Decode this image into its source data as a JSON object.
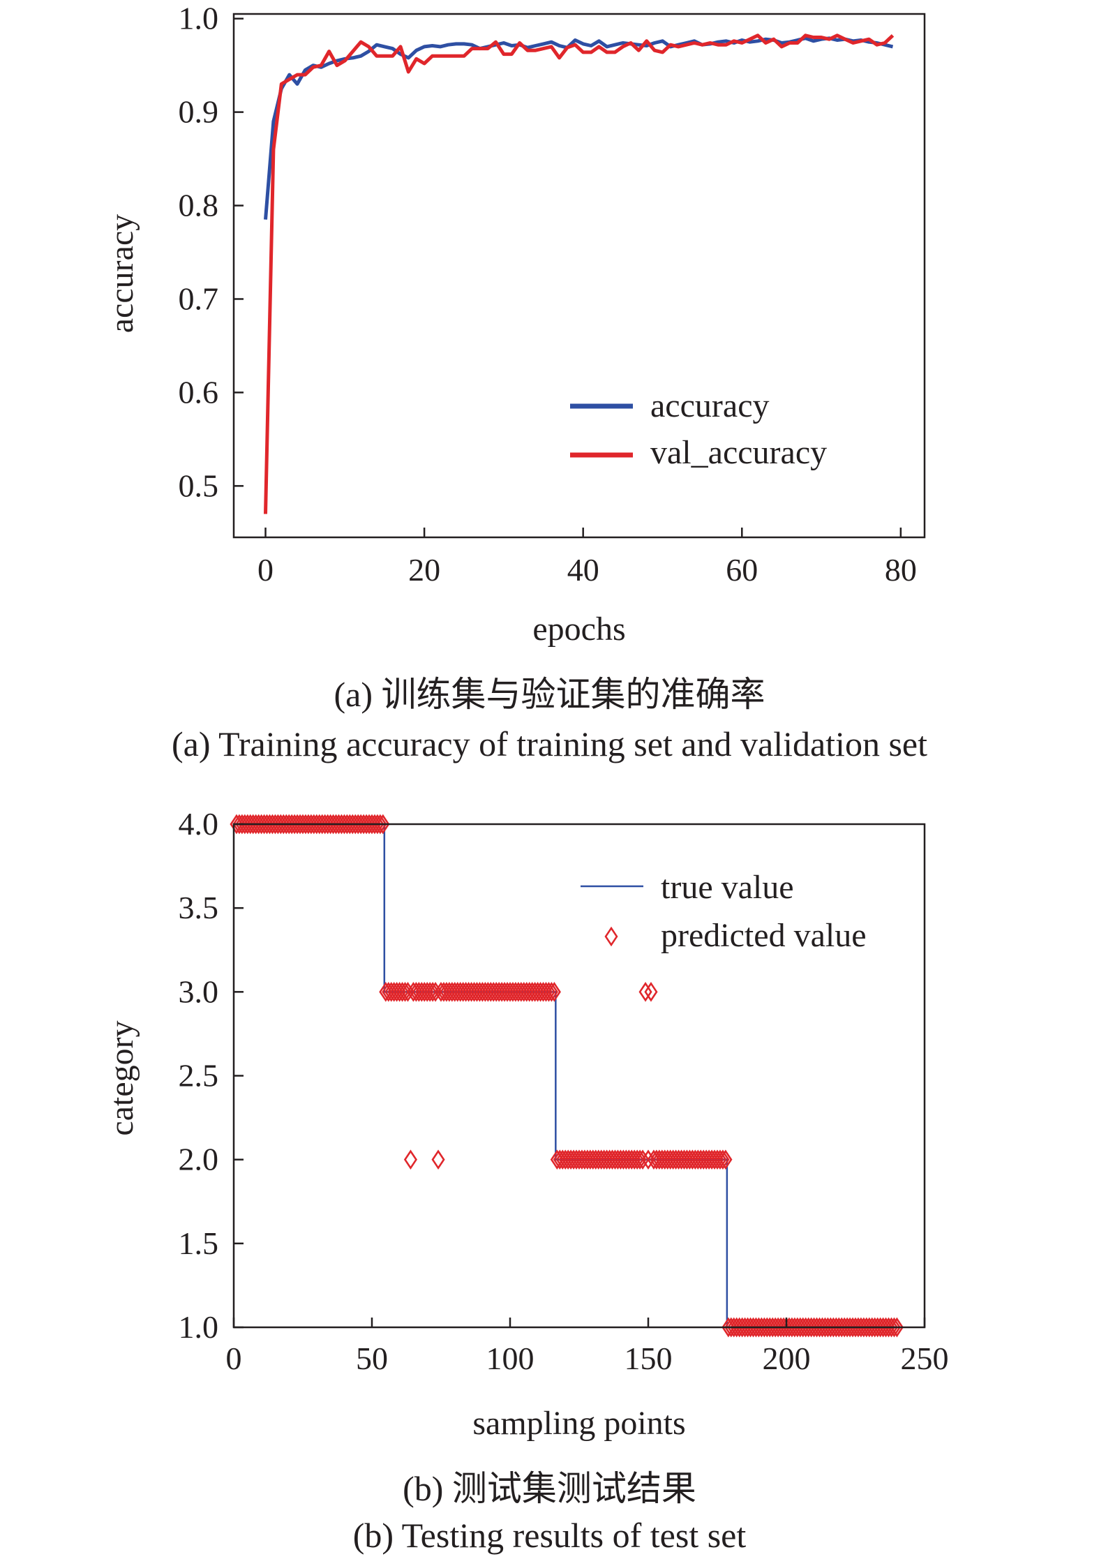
{
  "chart_data": [
    {
      "type": "line",
      "xlabel": "epochs",
      "ylabel": "accuracy",
      "xlim": [
        -4,
        83
      ],
      "ylim": [
        0.445,
        1.005
      ],
      "xticks": [
        0,
        20,
        40,
        60,
        80
      ],
      "yticks": [
        0.5,
        0.6,
        0.7,
        0.8,
        0.9,
        1.0
      ],
      "legend_position": "lower-right",
      "grid": false,
      "caption_cn": "(a) 训练集与验证集的准确率",
      "caption_en": "(a) Training accuracy of training set and validation set",
      "series": [
        {
          "name": "accuracy",
          "color": "#2e4fa3",
          "x": [
            0,
            1,
            2,
            3,
            4,
            5,
            6,
            7,
            8,
            9,
            10,
            11,
            12,
            13,
            14,
            15,
            16,
            17,
            18,
            19,
            20,
            21,
            22,
            23,
            24,
            25,
            26,
            27,
            28,
            29,
            30,
            31,
            32,
            33,
            34,
            35,
            36,
            37,
            38,
            39,
            40,
            41,
            42,
            43,
            44,
            45,
            46,
            47,
            48,
            49,
            50,
            51,
            52,
            53,
            54,
            55,
            56,
            57,
            58,
            59,
            60,
            61,
            62,
            63,
            64,
            65,
            66,
            67,
            68,
            69,
            70,
            71,
            72,
            73,
            74,
            75,
            76,
            77,
            78,
            79
          ],
          "y": [
            0.785,
            0.89,
            0.925,
            0.94,
            0.93,
            0.945,
            0.95,
            0.948,
            0.952,
            0.955,
            0.957,
            0.958,
            0.96,
            0.965,
            0.972,
            0.97,
            0.968,
            0.962,
            0.958,
            0.966,
            0.97,
            0.971,
            0.97,
            0.972,
            0.973,
            0.973,
            0.972,
            0.968,
            0.97,
            0.972,
            0.974,
            0.971,
            0.972,
            0.969,
            0.971,
            0.973,
            0.975,
            0.971,
            0.969,
            0.977,
            0.973,
            0.971,
            0.976,
            0.97,
            0.972,
            0.974,
            0.973,
            0.972,
            0.971,
            0.974,
            0.976,
            0.97,
            0.972,
            0.974,
            0.976,
            0.972,
            0.973,
            0.975,
            0.976,
            0.974,
            0.977,
            0.975,
            0.976,
            0.978,
            0.977,
            0.974,
            0.975,
            0.977,
            0.979,
            0.976,
            0.978,
            0.979,
            0.977,
            0.978,
            0.976,
            0.977,
            0.975,
            0.974,
            0.972,
            0.97
          ]
        },
        {
          "name": "val_accuracy",
          "color": "#e0262b",
          "x": [
            0,
            1,
            2,
            3,
            4,
            5,
            6,
            7,
            8,
            9,
            10,
            11,
            12,
            13,
            14,
            15,
            16,
            17,
            18,
            19,
            20,
            21,
            22,
            23,
            24,
            25,
            26,
            27,
            28,
            29,
            30,
            31,
            32,
            33,
            34,
            35,
            36,
            37,
            38,
            39,
            40,
            41,
            42,
            43,
            44,
            45,
            46,
            47,
            48,
            49,
            50,
            51,
            52,
            53,
            54,
            55,
            56,
            57,
            58,
            59,
            60,
            61,
            62,
            63,
            64,
            65,
            66,
            67,
            68,
            69,
            70,
            71,
            72,
            73,
            74,
            75,
            76,
            77,
            78,
            79
          ],
          "y": [
            0.47,
            0.86,
            0.93,
            0.935,
            0.94,
            0.94,
            0.948,
            0.95,
            0.965,
            0.95,
            0.955,
            0.965,
            0.975,
            0.97,
            0.96,
            0.96,
            0.96,
            0.97,
            0.943,
            0.957,
            0.952,
            0.96,
            0.96,
            0.96,
            0.96,
            0.96,
            0.968,
            0.968,
            0.968,
            0.975,
            0.962,
            0.962,
            0.974,
            0.966,
            0.966,
            0.968,
            0.97,
            0.958,
            0.969,
            0.972,
            0.964,
            0.964,
            0.97,
            0.964,
            0.964,
            0.97,
            0.974,
            0.966,
            0.976,
            0.966,
            0.964,
            0.972,
            0.97,
            0.972,
            0.974,
            0.972,
            0.974,
            0.972,
            0.972,
            0.976,
            0.974,
            0.978,
            0.982,
            0.974,
            0.978,
            0.97,
            0.974,
            0.974,
            0.982,
            0.98,
            0.98,
            0.978,
            0.982,
            0.978,
            0.974,
            0.976,
            0.978,
            0.972,
            0.974,
            0.982
          ]
        }
      ]
    },
    {
      "type": "scatter",
      "xlabel": "sampling points",
      "ylabel": "category",
      "xlim": [
        0,
        250
      ],
      "ylim": [
        1.0,
        4.0
      ],
      "xticks": [
        0,
        50,
        100,
        150,
        200,
        250
      ],
      "yticks": [
        1.0,
        1.5,
        2.0,
        2.5,
        3.0,
        3.5,
        4.0
      ],
      "legend_position": "upper-right",
      "grid": false,
      "caption_cn": "(b) 测试集测试结果",
      "caption_en": "(b) Testing results of test set",
      "n_points": 240,
      "true_value": {
        "name": "true value",
        "color": "#2e4fa3",
        "segments": [
          {
            "from": 1,
            "to": 54,
            "value": 4
          },
          {
            "from": 55,
            "to": 116,
            "value": 3
          },
          {
            "from": 117,
            "to": 178,
            "value": 2
          },
          {
            "from": 179,
            "to": 240,
            "value": 1
          }
        ]
      },
      "predicted_value": {
        "name": "predicted value",
        "color": "#e0262b",
        "marker": "diamond",
        "misclassified": [
          {
            "x": 64,
            "y": 2
          },
          {
            "x": 74,
            "y": 2
          },
          {
            "x": 149,
            "y": 3
          },
          {
            "x": 151,
            "y": 3
          }
        ]
      }
    }
  ]
}
